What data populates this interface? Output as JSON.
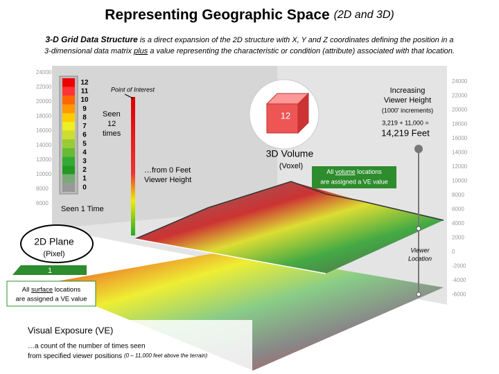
{
  "header": {
    "title": "Representing Geographic Space",
    "title_suffix": "(2D and 3D)"
  },
  "intro": {
    "lead": "3-D Grid Data Structure",
    "line1": "is a direct expansion of the 2D structure with X, Y and Z coordinates defining the position in a",
    "line2_start": "3-dimensional data matrix",
    "underlined": "plus",
    "line2_end": "a value representing the characteristic or condition (attribute) associated with that location."
  },
  "legend": [
    "12",
    "11",
    "10",
    "9",
    "8",
    "7",
    "6",
    "5",
    "4",
    "3",
    "2",
    "1",
    "0"
  ],
  "left_axis": [
    "24000",
    "22000",
    "20000",
    "18000",
    "16000",
    "14000",
    "12000",
    "10000",
    "8000",
    "6000"
  ],
  "right_axis": [
    "24000",
    "22000",
    "20000",
    "18000",
    "16000",
    "14000",
    "12000",
    "10000",
    "8000",
    "6000",
    "4000",
    "2000",
    "0",
    "-2000",
    "-4000",
    "-6000"
  ],
  "labels": {
    "point_of_interest": "Point of Interest",
    "seen_12": [
      "Seen",
      "12",
      "times"
    ],
    "from_zero": [
      "…from 0 Feet",
      "Viewer Height"
    ],
    "seen_1": "Seen 1 Time",
    "increasing": [
      "Increasing",
      "Viewer Height"
    ],
    "increments": "(1000' increments)",
    "sum": "3,219 + 11,000 =",
    "total": "14,219 Feet",
    "viewer_location": [
      "Viewer",
      "Location"
    ]
  },
  "volume": {
    "title": "3D Volume",
    "subtitle": "(Voxel)",
    "voxel_value": "12",
    "note_start": "All",
    "note_underlined": "volume",
    "note_end": "locations",
    "note_line2": "are assigned a VE value"
  },
  "plane": {
    "title": "2D Plane",
    "subtitle": "(Pixel)",
    "pixel_value": "1",
    "note_start": "All",
    "note_underlined": "surface",
    "note_end": "locations",
    "note_line2": "are assigned a VE value"
  },
  "footer": {
    "title": "Visual Exposure (VE)",
    "line1": "…a count of the number of times seen",
    "line2": "from specified viewer positions",
    "line2_note": "(0 – 11,000 feet above the terrain)"
  }
}
